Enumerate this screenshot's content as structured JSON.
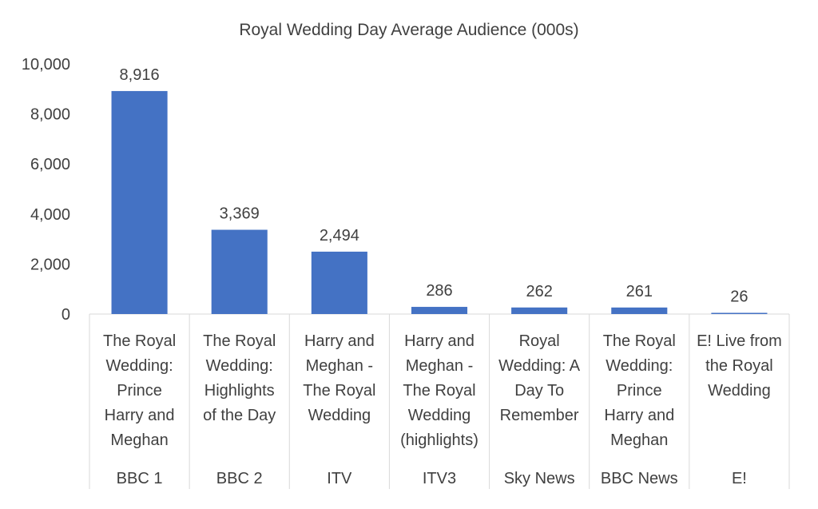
{
  "chart_data": {
    "type": "bar",
    "title": "Royal Wedding Day Average Audience (000s)",
    "xlabel": "",
    "ylabel": "",
    "ylim": [
      0,
      10000
    ],
    "yticks": [
      "0",
      "2,000",
      "4,000",
      "6,000",
      "8,000",
      "10,000"
    ],
    "ytick_values": [
      0,
      2000,
      4000,
      6000,
      8000,
      10000
    ],
    "grid": false,
    "legend": "none",
    "bar_color": "#4472C4",
    "categories": [
      {
        "program_lines": [
          "The Royal",
          "Wedding:",
          "Prince",
          "Harry and",
          "Meghan"
        ],
        "channel": "BBC 1"
      },
      {
        "program_lines": [
          "The Royal",
          "Wedding:",
          "Highlights",
          "of the Day"
        ],
        "channel": "BBC 2"
      },
      {
        "program_lines": [
          "Harry and",
          "Meghan -",
          "The Royal",
          "Wedding"
        ],
        "channel": "ITV"
      },
      {
        "program_lines": [
          "Harry and",
          "Meghan -",
          "The Royal",
          "Wedding",
          "(highlights)"
        ],
        "channel": "ITV3"
      },
      {
        "program_lines": [
          "Royal",
          "Wedding: A",
          "Day To",
          "Remember"
        ],
        "channel": "Sky News"
      },
      {
        "program_lines": [
          "The Royal",
          "Wedding:",
          "Prince",
          "Harry and",
          "Meghan"
        ],
        "channel": "BBC News"
      },
      {
        "program_lines": [
          "E! Live from",
          "the Royal",
          "Wedding"
        ],
        "channel": "E!"
      }
    ],
    "values": [
      8916,
      3369,
      2494,
      286,
      262,
      261,
      26
    ],
    "value_labels": [
      "8,916",
      "3,369",
      "2,494",
      "286",
      "262",
      "261",
      "26"
    ]
  }
}
